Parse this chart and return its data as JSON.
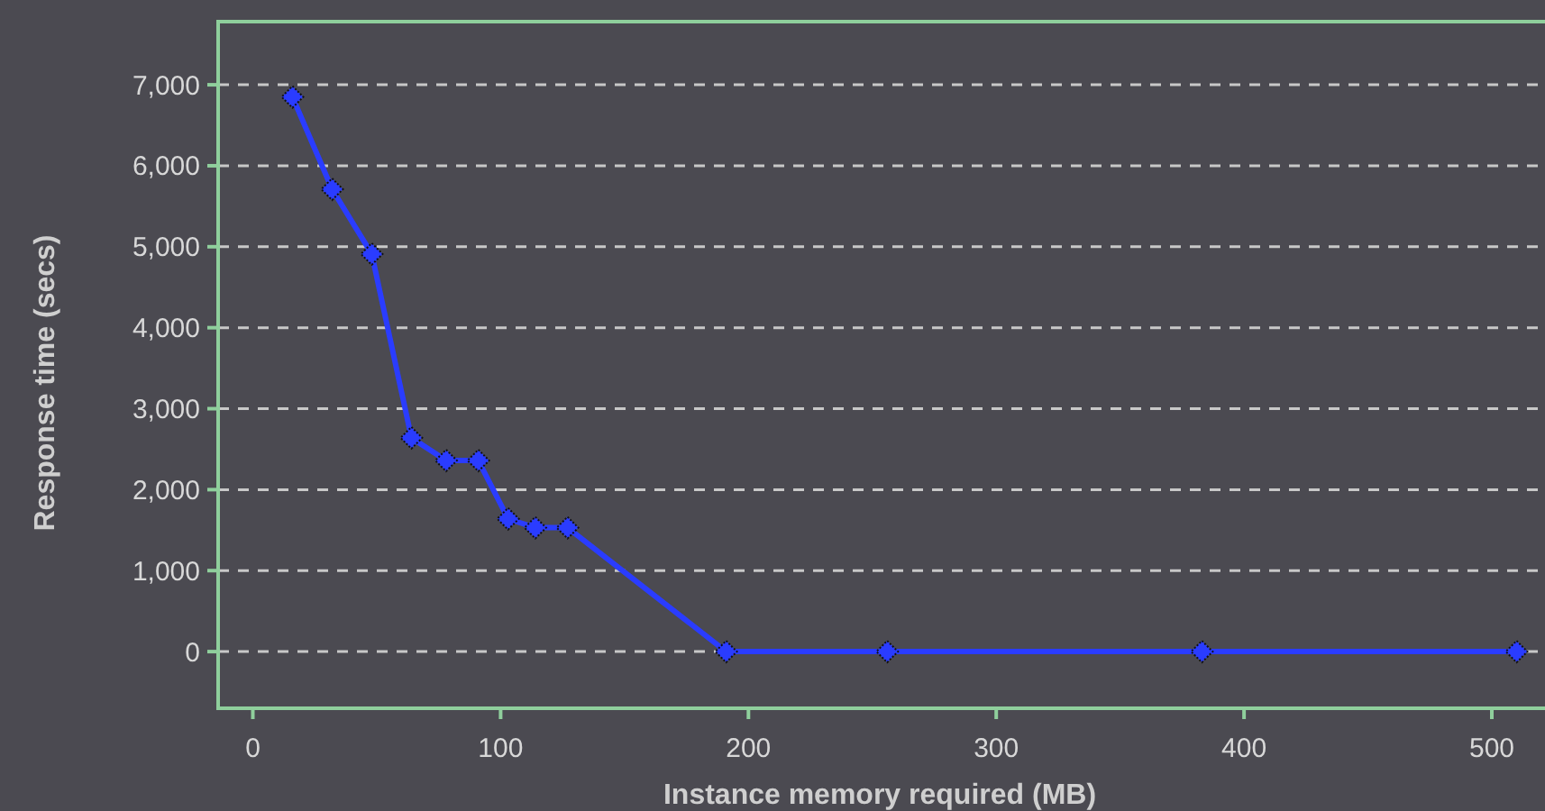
{
  "chart_data": {
    "type": "line",
    "xlabel": "Instance memory required (MB)",
    "ylabel": "Response time (secs)",
    "x": [
      16,
      32,
      48,
      64,
      78,
      91,
      103,
      114,
      127,
      191,
      256,
      383,
      510
    ],
    "series": [
      {
        "color": "#2a3cff",
        "values": [
          6850,
          5710,
          4910,
          2640,
          2360,
          2360,
          1640,
          1530,
          1530,
          0,
          0,
          0,
          0
        ]
      }
    ],
    "xlim": [
      -14,
      520
    ],
    "xticks": [
      0,
      100,
      200,
      300,
      400,
      500
    ],
    "ylim": [
      -700,
      7780
    ],
    "yticks": [
      {
        "value": 0,
        "label": "0"
      },
      {
        "value": 1000,
        "label": "1,000"
      },
      {
        "value": 2000,
        "label": "2,000"
      },
      {
        "value": 3000,
        "label": "3,000"
      },
      {
        "value": 4000,
        "label": "4,000"
      },
      {
        "value": 5000,
        "label": "5,000"
      },
      {
        "value": 6000,
        "label": "6,000"
      },
      {
        "value": 7000,
        "label": "7,000"
      }
    ],
    "grid": "y",
    "marker": "diamond",
    "line_style": "solid"
  }
}
